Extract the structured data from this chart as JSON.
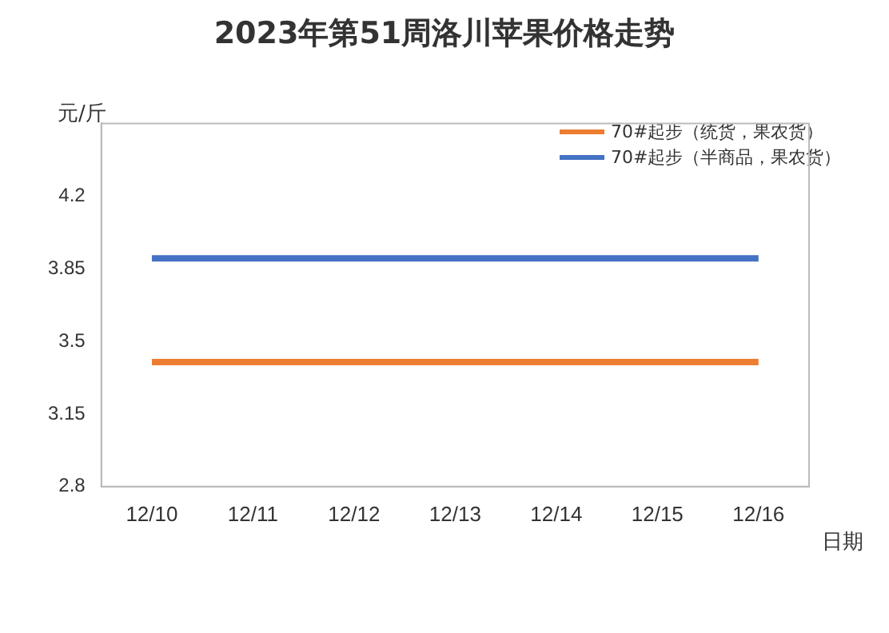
{
  "chart_data": {
    "type": "line",
    "title": "2023年第51周洛川苹果价格走势",
    "xlabel": "日期",
    "ylabel": "元/斤",
    "categories": [
      "12/10",
      "12/11",
      "12/12",
      "12/13",
      "12/14",
      "12/15",
      "12/16"
    ],
    "series": [
      {
        "name": "70#起步（统货，果农货）",
        "color": "#ed7d31",
        "values": [
          3.4,
          3.4,
          3.4,
          3.4,
          3.4,
          3.4,
          3.4
        ]
      },
      {
        "name": "70#起步（半商品，果农货）",
        "color": "#4472c4",
        "values": [
          3.9,
          3.9,
          3.9,
          3.9,
          3.9,
          3.9,
          3.9
        ]
      }
    ],
    "ylim": [
      2.8,
      4.55
    ],
    "yticks": [
      2.8,
      3.15,
      3.5,
      3.85,
      4.2
    ],
    "grid": false,
    "legend": "top right",
    "marker": "none",
    "line_style": "solid"
  }
}
